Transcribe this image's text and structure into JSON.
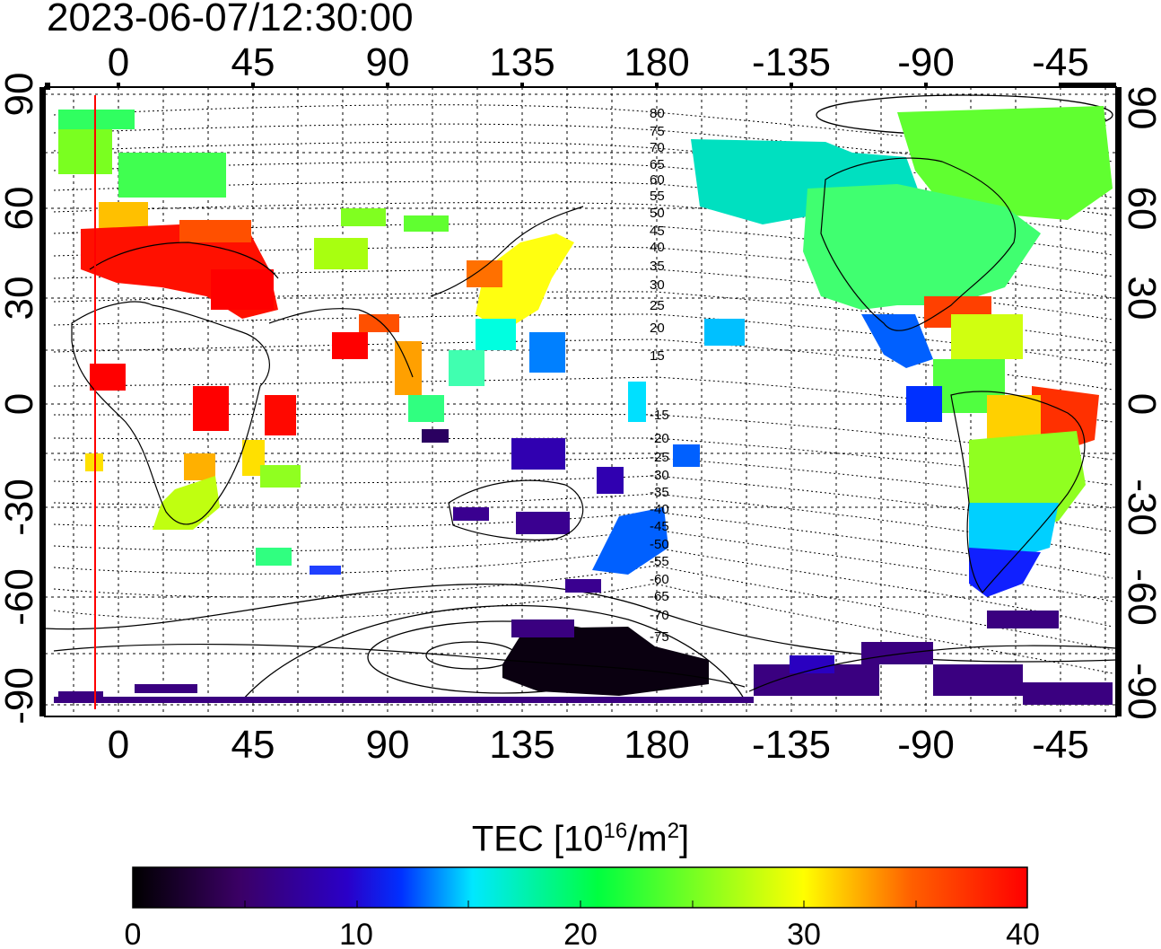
{
  "title": "2023-06-07/12:30:00",
  "map": {
    "top_ticks": [
      "0",
      "45",
      "90",
      "135",
      "180",
      "-135",
      "-90",
      "-45"
    ],
    "bottom_ticks": [
      "0",
      "45",
      "90",
      "135",
      "180",
      "-135",
      "-90",
      "-45"
    ],
    "left_ticks": [
      "90",
      "60",
      "30",
      "0",
      "-30",
      "-60",
      "-90"
    ],
    "right_ticks": [
      "90",
      "60",
      "30",
      "0",
      "-30",
      "-60",
      "-90"
    ],
    "maglat_labels": [
      "80",
      "75",
      "70",
      "65",
      "60",
      "55",
      "50",
      "45",
      "40",
      "35",
      "30",
      "25",
      "20",
      "15",
      "-15",
      "-20",
      "-25",
      "-30",
      "-35",
      "-40",
      "-45",
      "-50",
      "-55",
      "-60",
      "-65",
      "-70",
      "-75"
    ],
    "terminator_color": "#ff0000",
    "grid": "dotted"
  },
  "colorbar": {
    "title_text": "TEC  [10",
    "title_exp1": "16",
    "title_mid": "/m",
    "title_exp2": "2",
    "title_end": "]",
    "tick_labels": [
      "0",
      "10",
      "20",
      "30",
      "40"
    ],
    "min": 0,
    "max": 40,
    "colors": [
      "#000000",
      "#3b0066",
      "#2a00c8",
      "#0030ff",
      "#00e8ff",
      "#00ff40",
      "#ffff00",
      "#ff6000",
      "#ff0000"
    ]
  }
}
